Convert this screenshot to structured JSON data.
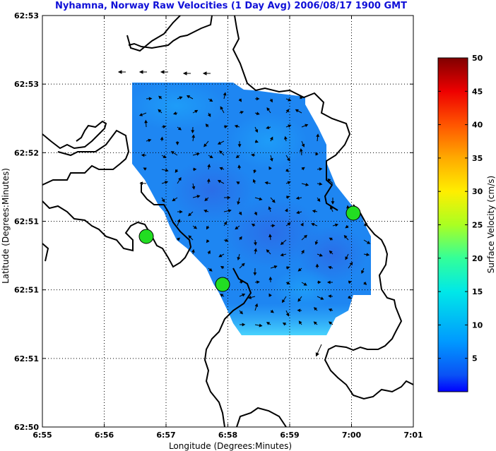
{
  "chart_data": {
    "type": "heatmap",
    "title": "Nyhamna, Norway Raw Velocities (1 Day Avg) 2006/08/17 1900 GMT",
    "xlabel": "Longitude (Degrees:Minutes)",
    "ylabel": "Latitude (Degrees:Minutes)",
    "x_ticks": [
      "6:55",
      "6:56",
      "6:57",
      "6:58",
      "6:59",
      "7:00",
      "7:01"
    ],
    "y_ticks": [
      "62:53",
      "62:53",
      "62:52",
      "62:51",
      "62:51",
      "62:51",
      "62:50"
    ],
    "xlim_minutes": [
      55,
      61
    ],
    "grid": true,
    "colorbar": {
      "label": "Surface Velocity (cm/s)",
      "range": [
        0,
        50
      ],
      "ticks": [
        5,
        10,
        15,
        20,
        25,
        30,
        35,
        40,
        45,
        50
      ],
      "colormap": "jet"
    },
    "sites": [
      {
        "name": "site-1",
        "lon": "6:56.7",
        "lat_frac": 0.55
      },
      {
        "name": "site-2",
        "lon": "6:57.9",
        "lat_frac": 0.38
      },
      {
        "name": "site-3",
        "lon": "7:00.0",
        "lat_frac": 0.63
      }
    ],
    "speed_field_range_cm_s": [
      1,
      9
    ],
    "colors": {
      "site_fill": "#22dd22",
      "land_line": "#000000",
      "title": "#1010d8"
    }
  }
}
